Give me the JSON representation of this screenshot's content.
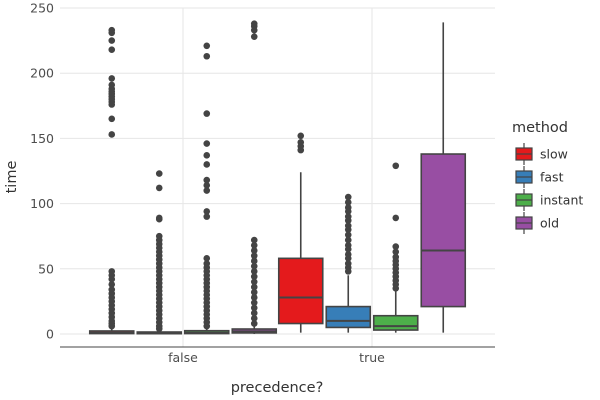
{
  "chart_data": {
    "type": "boxplot",
    "xlabel": "precedence?",
    "ylabel": "time",
    "categories": [
      "false",
      "true"
    ],
    "ylim": [
      -10,
      250
    ],
    "yticks": [
      0,
      50,
      100,
      150,
      200,
      250
    ],
    "grid": true,
    "legend": {
      "title": "method",
      "placement": "right"
    },
    "series": [
      {
        "name": "slow",
        "color": "#E41A1C",
        "boxes": [
          {
            "category": "false",
            "q1": 0.3,
            "median": 1.0,
            "q3": 2.3,
            "whisker_low": 0,
            "whisker_high": 4,
            "outliers": [
              233,
              231,
              225,
              218,
              196,
              191,
              188,
              186,
              184,
              182,
              180,
              178,
              176,
              165,
              153,
              48,
              45,
              42,
              38,
              34,
              31,
              28,
              25,
              22,
              19,
              16,
              13,
              10,
              8,
              6
            ]
          },
          {
            "category": "true",
            "q1": 8,
            "median": 28,
            "q3": 58,
            "whisker_low": 1,
            "whisker_high": 124,
            "outliers": [
              152,
              147,
              144,
              141
            ]
          }
        ]
      },
      {
        "name": "fast",
        "color": "#377EB8",
        "boxes": [
          {
            "category": "false",
            "q1": 0.2,
            "median": 0.6,
            "q3": 1.5,
            "whisker_low": 0,
            "whisker_high": 3,
            "outliers": [
              123,
              112,
              89,
              88,
              75,
              72,
              69,
              66,
              63,
              60,
              57,
              54,
              51,
              48,
              45,
              42,
              39,
              36,
              33,
              30,
              27,
              24,
              21,
              18,
              15,
              12,
              9,
              6,
              4
            ]
          },
          {
            "category": "true",
            "q1": 5,
            "median": 10,
            "q3": 21,
            "whisker_low": 1,
            "whisker_high": 45,
            "outliers": [
              105,
              101,
              97,
              94,
              90,
              87,
              83,
              80,
              76,
              72,
              68,
              65,
              61,
              58,
              54,
              51,
              48
            ]
          }
        ]
      },
      {
        "name": "instant",
        "color": "#4DAF4A",
        "boxes": [
          {
            "category": "false",
            "q1": 0.3,
            "median": 0.9,
            "q3": 2.5,
            "whisker_low": 0,
            "whisker_high": 4,
            "outliers": [
              221,
              213,
              169,
              146,
              137,
              130,
              118,
              114,
              110,
              94,
              90,
              58,
              54,
              51,
              48,
              45,
              42,
              39,
              36,
              33,
              30,
              27,
              24,
              21,
              18,
              15,
              12,
              9,
              6
            ]
          },
          {
            "category": "true",
            "q1": 3,
            "median": 6,
            "q3": 14,
            "whisker_low": 1,
            "whisker_high": 33,
            "outliers": [
              129,
              89,
              67,
              63,
              59,
              56,
              53,
              50,
              47,
              44,
              41,
              38,
              35
            ]
          }
        ]
      },
      {
        "name": "old",
        "color": "#984EA3",
        "boxes": [
          {
            "category": "false",
            "q1": 0.8,
            "median": 2.0,
            "q3": 3.8,
            "whisker_low": 0,
            "whisker_high": 6,
            "outliers": [
              238,
              236,
              233,
              228,
              72,
              68,
              64,
              60,
              56,
              52,
              48,
              44,
              40,
              36,
              32,
              28,
              24,
              20,
              16,
              12,
              8
            ]
          },
          {
            "category": "true",
            "q1": 21,
            "median": 64,
            "q3": 138,
            "whisker_low": 1,
            "whisker_high": 239,
            "outliers": []
          }
        ]
      }
    ]
  }
}
